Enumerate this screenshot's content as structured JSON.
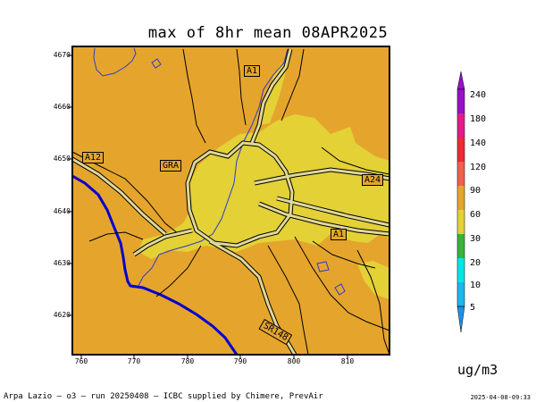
{
  "map": {
    "title": "max of 8hr mean 08APR2025",
    "x_ticks": [
      "760",
      "770",
      "780",
      "790",
      "800",
      "810"
    ],
    "y_ticks": [
      "4670",
      "4660",
      "4650",
      "4640",
      "4630",
      "4620"
    ],
    "road_labels": [
      "A1",
      "A12",
      "GRA",
      "A24",
      "A1",
      "SR148"
    ],
    "background_color": "#e5a52c",
    "high_zone_color": "#e3d136",
    "coastline_color": "#0000d0"
  },
  "colorbar": {
    "ticks": [
      "240",
      "180",
      "140",
      "120",
      "90",
      "60",
      "30",
      "20",
      "10",
      "5"
    ],
    "colors": [
      "#9910c8",
      "#e51a8a",
      "#ee2a34",
      "#f0604a",
      "#e5a52c",
      "#e3d136",
      "#3ab33a",
      "#18c62a",
      "#00e6e6",
      "#1ab8ee",
      "#1e90e8"
    ],
    "units": "ug/m3"
  },
  "footer": {
    "left": "Arpa Lazio — o3 — run 20250408 — ICBC supplied by Chimere, PrevAir",
    "right": "2025-04-08-09:33"
  }
}
